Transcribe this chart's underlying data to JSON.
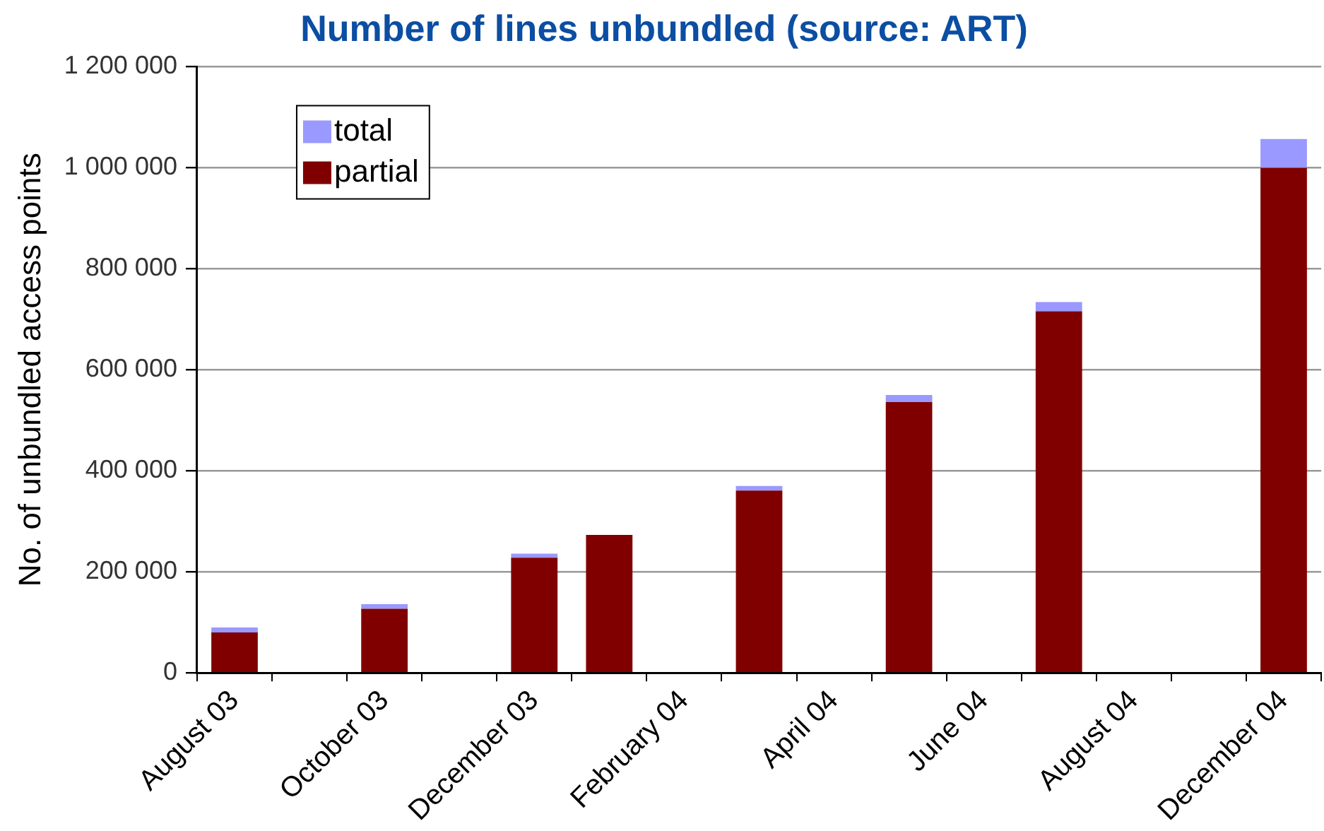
{
  "chart_data": {
    "type": "bar",
    "title": "Number of lines unbundled (source: ART)",
    "ylabel": "No. of unbundled access points",
    "categories": [
      "August 03",
      null,
      "October 03",
      null,
      "December 03",
      null,
      "February 04",
      null,
      "April 04",
      null,
      "June 04",
      null,
      "August 04",
      null,
      "December 04"
    ],
    "series": [
      {
        "name": "partial",
        "color": "#800000",
        "values": [
          80000,
          null,
          127000,
          null,
          228000,
          273000,
          null,
          361000,
          null,
          536000,
          null,
          716000,
          null,
          null,
          1000000
        ]
      },
      {
        "name": "total",
        "color": "#9999ff",
        "values": [
          10000,
          null,
          9000,
          null,
          8000,
          null,
          null,
          9000,
          null,
          14000,
          null,
          18000,
          null,
          null,
          57000
        ]
      }
    ],
    "stacked": true,
    "ylim": [
      0,
      1200000
    ],
    "yticks": [
      {
        "value": 0,
        "label": "0"
      },
      {
        "value": 200000,
        "label": "200 000"
      },
      {
        "value": 400000,
        "label": "400 000"
      },
      {
        "value": 600000,
        "label": "600 000"
      },
      {
        "value": 800000,
        "label": "800 000"
      },
      {
        "value": 1000000,
        "label": "1 000 000"
      },
      {
        "value": 1200000,
        "label": "1 200 000"
      }
    ],
    "grid": "y",
    "legend": "top left"
  }
}
